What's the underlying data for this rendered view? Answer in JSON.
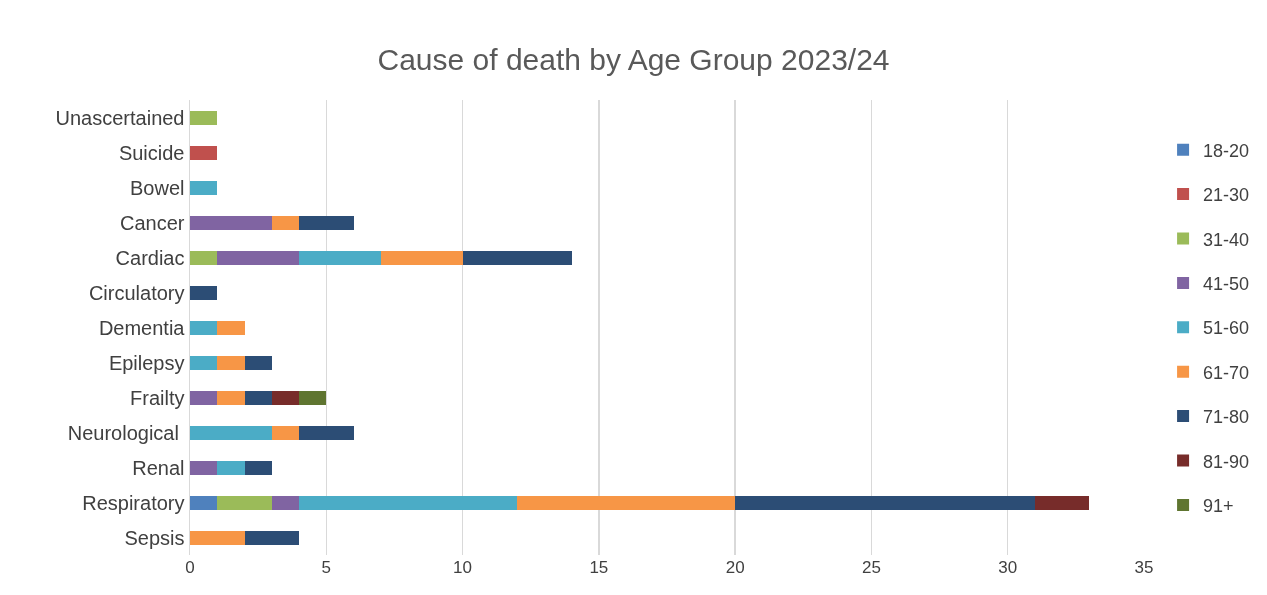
{
  "chart_data": {
    "type": "bar",
    "orientation": "horizontal",
    "stacked": true,
    "title": "Cause of death by Age Group 2023/24",
    "categories": [
      "Unascertained",
      "Suicide",
      "Bowel",
      "Cancer",
      "Cardiac",
      "Circulatory",
      "Dementia",
      "Epilepsy",
      "Frailty",
      "Neurological ",
      "Renal",
      "Respiratory",
      "Sepsis"
    ],
    "series": [
      {
        "name": "18-20",
        "color": "#4f81bd",
        "values": [
          null,
          null,
          null,
          null,
          null,
          null,
          null,
          null,
          null,
          null,
          null,
          1,
          null
        ]
      },
      {
        "name": "21-30",
        "color": "#c0504d",
        "values": [
          null,
          1,
          null,
          null,
          null,
          null,
          null,
          null,
          null,
          null,
          null,
          null,
          null
        ]
      },
      {
        "name": "31-40",
        "color": "#9bbb59",
        "values": [
          1,
          null,
          null,
          null,
          1,
          null,
          null,
          null,
          null,
          null,
          null,
          2,
          null
        ]
      },
      {
        "name": "41-50",
        "color": "#8064a2",
        "values": [
          null,
          null,
          null,
          3,
          3,
          null,
          null,
          null,
          1,
          null,
          1,
          1,
          null
        ]
      },
      {
        "name": "51-60",
        "color": "#4bacc6",
        "values": [
          null,
          null,
          1,
          null,
          3,
          null,
          1,
          1,
          null,
          3,
          1,
          8,
          null
        ]
      },
      {
        "name": "61-70",
        "color": "#f79646",
        "values": [
          null,
          null,
          null,
          1,
          3,
          null,
          1,
          1,
          1,
          1,
          null,
          8,
          2
        ]
      },
      {
        "name": "71-80",
        "color": "#2c4d75",
        "values": [
          null,
          null,
          null,
          2,
          4,
          1,
          null,
          1,
          1,
          2,
          1,
          11,
          2
        ]
      },
      {
        "name": "81-90",
        "color": "#772c2a",
        "values": [
          null,
          null,
          null,
          null,
          null,
          null,
          null,
          null,
          1,
          null,
          null,
          2,
          null
        ]
      },
      {
        "name": "91+",
        "color": "#5f7530",
        "values": [
          null,
          null,
          null,
          null,
          null,
          null,
          null,
          null,
          1,
          null,
          null,
          null,
          null
        ]
      }
    ],
    "xlim": [
      0,
      35
    ],
    "xticks": [
      0,
      5,
      10,
      15,
      20,
      25,
      30,
      35
    ],
    "grid": "x",
    "legend": "right"
  }
}
